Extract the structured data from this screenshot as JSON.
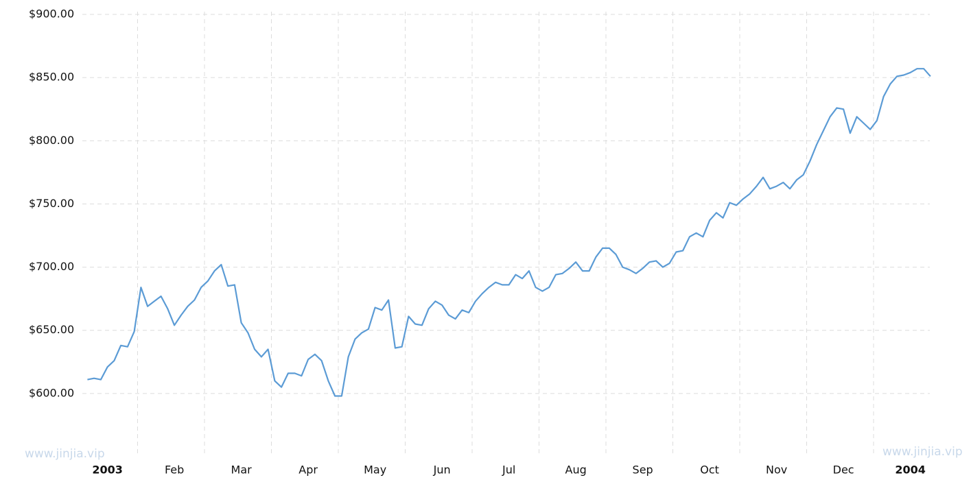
{
  "chart_data": {
    "type": "line",
    "categories": [
      null,
      null,
      null,
      null,
      null,
      "2003",
      null,
      null,
      null,
      null,
      null,
      null,
      null,
      null,
      null,
      "Feb",
      null,
      null,
      null,
      null,
      null,
      null,
      null,
      null,
      null,
      "Mar",
      null,
      null,
      null,
      null,
      null,
      null,
      null,
      null,
      null,
      "Apr",
      null,
      null,
      null,
      null,
      null,
      null,
      null,
      null,
      null,
      "May",
      null,
      null,
      null,
      null,
      null,
      null,
      null,
      null,
      null,
      "Jun",
      null,
      null,
      null,
      null,
      null,
      null,
      null,
      null,
      null,
      "Jul",
      null,
      null,
      null,
      null,
      null,
      null,
      null,
      null,
      null,
      "Aug",
      null,
      null,
      null,
      null,
      null,
      null,
      null,
      null,
      null,
      "Sep",
      null,
      null,
      null,
      null,
      null,
      null,
      null,
      null,
      null,
      "Oct",
      null,
      null,
      null,
      null,
      null,
      null,
      null,
      null,
      null,
      "Nov",
      null,
      null,
      null,
      null,
      null,
      null,
      null,
      null,
      null,
      "Dec",
      null,
      null,
      null,
      null,
      null,
      null,
      null,
      null,
      null,
      "2004",
      null,
      null,
      null
    ],
    "values": [
      null,
      null,
      611,
      612,
      611,
      621,
      626,
      638,
      637,
      649,
      684,
      669,
      673,
      677,
      667,
      654,
      662,
      669,
      674,
      684,
      689,
      697,
      702,
      685,
      686,
      656,
      648,
      635,
      629,
      635,
      610,
      605,
      616,
      616,
      614,
      627,
      631,
      626,
      610,
      598,
      598,
      629,
      643,
      648,
      651,
      668,
      666,
      674,
      636,
      637,
      661,
      655,
      654,
      667,
      673,
      670,
      662,
      659,
      666,
      664,
      673,
      679,
      684,
      688,
      686,
      686,
      694,
      691,
      697,
      684,
      681,
      684,
      694,
      695,
      699,
      704,
      697,
      697,
      708,
      715,
      715,
      710,
      700,
      698,
      695,
      699,
      704,
      705,
      700,
      703,
      712,
      713,
      724,
      727,
      724,
      737,
      743,
      739,
      751,
      749,
      754,
      758,
      764,
      771,
      762,
      764,
      767,
      762,
      769,
      773,
      784,
      797,
      808,
      819,
      826,
      825,
      806,
      819,
      814,
      809,
      816,
      835,
      845,
      851,
      852,
      854,
      857,
      857,
      851
    ],
    "color": "#5b9bd5",
    "ylim": [
      550,
      900
    ],
    "yticks": [
      {
        "value": 600,
        "label": "$600.00"
      },
      {
        "value": 650,
        "label": "$650.00"
      },
      {
        "value": 700,
        "label": "$700.00"
      },
      {
        "value": 750,
        "label": "$750.00"
      },
      {
        "value": 800,
        "label": "$800.00"
      },
      {
        "value": 850,
        "label": "$850.00"
      },
      {
        "value": 900,
        "label": "$900.00"
      }
    ],
    "grid": true,
    "watermarks": [
      "www.jinjia.vip",
      "www.jinjia.vip"
    ]
  }
}
